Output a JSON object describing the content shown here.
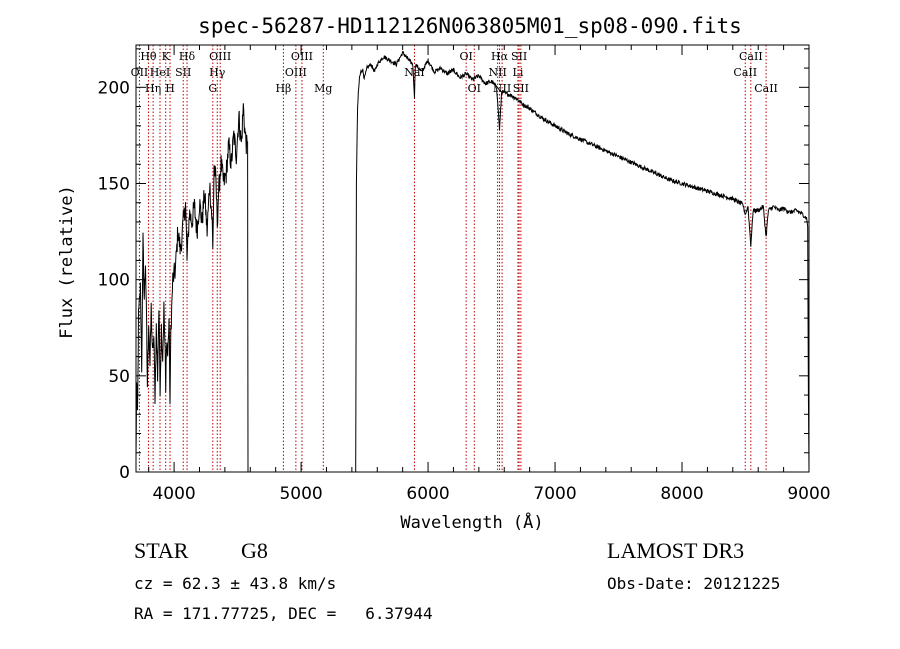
{
  "chart_data": {
    "type": "line",
    "title": "spec-56287-HD112126N063805M01_sp08-090.fits",
    "xlabel": "Wavelength (Å)",
    "ylabel": "Flux (relative)",
    "xlim": [
      3700,
      9000
    ],
    "ylim": [
      0,
      222
    ],
    "xticks": [
      4000,
      5000,
      6000,
      7000,
      8000,
      9000
    ],
    "yticks": [
      0,
      50,
      100,
      150,
      200
    ],
    "series": [
      {
        "name": "flux",
        "anchors": [
          [
            3700,
            5
          ],
          [
            3705,
            45
          ],
          [
            3712,
            30
          ],
          [
            3720,
            80
          ],
          [
            3735,
            95
          ],
          [
            3745,
            55
          ],
          [
            3755,
            120
          ],
          [
            3765,
            90
          ],
          [
            3775,
            110
          ],
          [
            3790,
            45
          ],
          [
            3800,
            80
          ],
          [
            3810,
            55
          ],
          [
            3820,
            85
          ],
          [
            3830,
            60
          ],
          [
            3840,
            70
          ],
          [
            3850,
            40
          ],
          [
            3860,
            75
          ],
          [
            3870,
            50
          ],
          [
            3880,
            85
          ],
          [
            3890,
            45
          ],
          [
            3900,
            75
          ],
          [
            3910,
            60
          ],
          [
            3920,
            85
          ],
          [
            3930,
            60
          ],
          [
            3934,
            40
          ],
          [
            3940,
            70
          ],
          [
            3950,
            60
          ],
          [
            3960,
            80
          ],
          [
            3968,
            35
          ],
          [
            3975,
            75
          ],
          [
            3990,
            100
          ],
          [
            4010,
            105
          ],
          [
            4030,
            125
          ],
          [
            4050,
            115
          ],
          [
            4070,
            128
          ],
          [
            4090,
            140
          ],
          [
            4102,
            110
          ],
          [
            4120,
            135
          ],
          [
            4140,
            130
          ],
          [
            4160,
            138
          ],
          [
            4180,
            125
          ],
          [
            4200,
            140
          ],
          [
            4220,
            130
          ],
          [
            4240,
            145
          ],
          [
            4260,
            125
          ],
          [
            4280,
            150
          ],
          [
            4300,
            130
          ],
          [
            4305,
            115
          ],
          [
            4315,
            160
          ],
          [
            4330,
            150
          ],
          [
            4340,
            130
          ],
          [
            4350,
            145
          ],
          [
            4370,
            160
          ],
          [
            4390,
            150
          ],
          [
            4410,
            155
          ],
          [
            4430,
            170
          ],
          [
            4450,
            160
          ],
          [
            4470,
            175
          ],
          [
            4490,
            165
          ],
          [
            4510,
            185
          ],
          [
            4530,
            170
          ],
          [
            4545,
            190
          ],
          [
            4560,
            175
          ],
          [
            4575,
            168
          ],
          [
            4579,
            168
          ],
          [
            4582,
            0
          ],
          [
            5430,
            0
          ],
          [
            5432,
            40
          ],
          [
            5436,
            150
          ],
          [
            5445,
            190
          ],
          [
            5460,
            205
          ],
          [
            5480,
            210
          ],
          [
            5500,
            205
          ],
          [
            5520,
            210
          ],
          [
            5550,
            212
          ],
          [
            5580,
            208
          ],
          [
            5600,
            212
          ],
          [
            5650,
            216
          ],
          [
            5700,
            214
          ],
          [
            5750,
            212
          ],
          [
            5800,
            218
          ],
          [
            5850,
            214
          ],
          [
            5880,
            212
          ],
          [
            5893,
            195
          ],
          [
            5900,
            212
          ],
          [
            5950,
            208
          ],
          [
            6000,
            214
          ],
          [
            6050,
            208
          ],
          [
            6100,
            210
          ],
          [
            6150,
            207
          ],
          [
            6200,
            209
          ],
          [
            6250,
            205
          ],
          [
            6300,
            207
          ],
          [
            6350,
            204
          ],
          [
            6400,
            206
          ],
          [
            6450,
            202
          ],
          [
            6500,
            203
          ],
          [
            6540,
            200
          ],
          [
            6563,
            178
          ],
          [
            6580,
            198
          ],
          [
            6600,
            197
          ],
          [
            6650,
            196
          ],
          [
            6700,
            194
          ],
          [
            6750,
            191
          ],
          [
            6800,
            189
          ],
          [
            6900,
            184
          ],
          [
            7000,
            180
          ],
          [
            7100,
            176
          ],
          [
            7200,
            173
          ],
          [
            7300,
            170
          ],
          [
            7400,
            167
          ],
          [
            7500,
            164
          ],
          [
            7600,
            161
          ],
          [
            7700,
            158
          ],
          [
            7800,
            155
          ],
          [
            7900,
            152
          ],
          [
            8000,
            150
          ],
          [
            8100,
            148
          ],
          [
            8200,
            146
          ],
          [
            8300,
            144
          ],
          [
            8400,
            142
          ],
          [
            8480,
            139
          ],
          [
            8498,
            134
          ],
          [
            8520,
            138
          ],
          [
            8542,
            118
          ],
          [
            8560,
            136
          ],
          [
            8600,
            136
          ],
          [
            8640,
            138
          ],
          [
            8662,
            122
          ],
          [
            8680,
            136
          ],
          [
            8720,
            138
          ],
          [
            8760,
            136
          ],
          [
            8800,
            137
          ],
          [
            8850,
            135
          ],
          [
            8900,
            136
          ],
          [
            8950,
            134
          ],
          [
            8980,
            132
          ],
          [
            8990,
            128
          ],
          [
            8995,
            40
          ],
          [
            9000,
            0
          ]
        ]
      }
    ],
    "lines": [
      {
        "label": "OII",
        "x": 3727,
        "row": 2
      },
      {
        "label": "Hθ",
        "x": 3798,
        "row": 1
      },
      {
        "label": "Hη",
        "x": 3835,
        "row": 3
      },
      {
        "label": "HeI",
        "x": 3889,
        "row": 2
      },
      {
        "label": "K",
        "x": 3934,
        "row": 1
      },
      {
        "label": "H",
        "x": 3968,
        "row": 3
      },
      {
        "label": "SII",
        "x": 4072,
        "row": 2
      },
      {
        "label": "Hδ",
        "x": 4102,
        "row": 1
      },
      {
        "label": "OIII",
        "x": 4363,
        "row": 1
      },
      {
        "label": "Hγ",
        "x": 4340,
        "row": 2
      },
      {
        "label": "G",
        "x": 4305,
        "row": 3
      },
      {
        "label": "Hβ",
        "x": 4861,
        "row": 3
      },
      {
        "label": "OIII",
        "x": 4959,
        "row": 2
      },
      {
        "label": "OIII",
        "x": 5007,
        "row": 1
      },
      {
        "label": "Mg",
        "x": 5175,
        "row": 3
      },
      {
        "label": "NaI",
        "x": 5893,
        "row": 2
      },
      {
        "label": "OI",
        "x": 6300,
        "row": 1
      },
      {
        "label": "OI",
        "x": 6364,
        "row": 3
      },
      {
        "label": "Hα",
        "x": 6563,
        "row": 1
      },
      {
        "label": "NII",
        "x": 6548,
        "row": 2
      },
      {
        "label": "NII",
        "x": 6583,
        "row": 3
      },
      {
        "label": "SII",
        "x": 6717,
        "row": 1
      },
      {
        "label": "Li",
        "x": 6708,
        "row": 2
      },
      {
        "label": "SII",
        "x": 6731,
        "row": 3
      },
      {
        "label": "CaII",
        "x": 8542,
        "row": 1
      },
      {
        "label": "CaII",
        "x": 8498,
        "row": 2
      },
      {
        "label": "CaII",
        "x": 8662,
        "row": 3
      }
    ]
  },
  "info": {
    "class_label": "STAR",
    "subclass": "G8",
    "survey": "LAMOST DR3",
    "cz": "cz = 62.3 ± 43.8 km/s",
    "obs_date": "Obs-Date: 20121225",
    "coords": "RA = 171.77725, DEC =   6.37944"
  }
}
